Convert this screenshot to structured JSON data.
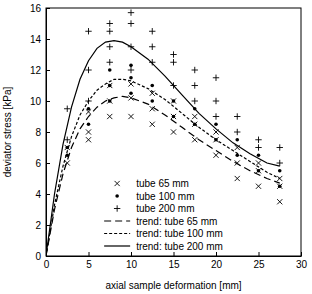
{
  "chart_data": {
    "type": "scatter",
    "x_label": "axial sample deformation [mm]",
    "y_label": "deviator stress [kPa]",
    "xlim": [
      0,
      30
    ],
    "ylim": [
      0,
      16
    ],
    "xticks": [
      0,
      5,
      10,
      15,
      20,
      25,
      30
    ],
    "yticks": [
      0,
      2,
      4,
      6,
      8,
      10,
      12,
      14,
      16
    ],
    "grid": false,
    "legend": "lower center",
    "series": [
      {
        "name": "tube 65 mm",
        "type": "scatter",
        "marker": "x",
        "color": "#000000",
        "x": [
          2.5,
          2.5,
          5,
          5,
          5,
          7.5,
          7.5,
          7.5,
          10,
          10,
          10,
          12.5,
          12.5,
          12.5,
          15,
          15,
          15,
          17.5,
          17.5,
          17.5,
          20,
          20,
          20,
          22.5,
          22.5,
          22.5,
          25,
          25,
          25,
          27.5,
          27.5,
          27.5
        ],
        "values": [
          6.0,
          7.0,
          8.0,
          9.3,
          7.5,
          9.0,
          10.0,
          11.0,
          9.0,
          10.2,
          11.1,
          8.5,
          9.5,
          10.5,
          8.0,
          9.0,
          10.0,
          7.5,
          8.5,
          9.0,
          6.5,
          7.5,
          8.0,
          5.0,
          6.0,
          7.0,
          4.5,
          5.5,
          6.0,
          3.5,
          4.5,
          5.0
        ]
      },
      {
        "name": "tube 100 mm",
        "type": "scatter",
        "marker": "dot",
        "color": "#000000",
        "x": [
          2.5,
          2.5,
          5,
          5,
          7.5,
          7.5,
          7.5,
          10,
          10,
          10,
          12.5,
          12.5,
          15,
          15,
          17.5,
          17.5,
          20,
          20,
          22.5,
          22.5,
          25,
          25,
          27.5,
          27.5
        ],
        "values": [
          6.5,
          7.0,
          8.5,
          9.5,
          10.0,
          11.0,
          12.0,
          10.5,
          11.5,
          12.3,
          10.0,
          11.0,
          9.0,
          10.0,
          8.5,
          9.5,
          7.5,
          8.5,
          6.5,
          7.5,
          5.5,
          6.5,
          4.5,
          5.5
        ]
      },
      {
        "name": "tube 200 mm",
        "type": "scatter",
        "marker": "plus",
        "color": "#000000",
        "x": [
          2.5,
          2.5,
          5,
          5,
          5,
          7.5,
          7.5,
          7.5,
          7.5,
          10,
          10,
          10,
          10,
          12.5,
          12.5,
          12.5,
          15,
          15,
          15,
          17.5,
          17.5,
          17.5,
          20,
          20,
          20,
          22.5,
          22.5,
          25,
          25,
          27.5,
          27.5
        ],
        "values": [
          7.5,
          9.5,
          10.0,
          12.0,
          14.5,
          12.5,
          13.5,
          14.5,
          15.0,
          12.0,
          13.5,
          15.0,
          15.7,
          12.5,
          13.5,
          14.5,
          11.0,
          12.5,
          13.0,
          10.0,
          11.0,
          12.0,
          9.0,
          10.0,
          11.5,
          8.0,
          9.0,
          7.0,
          7.5,
          6.0,
          7.0
        ]
      },
      {
        "name": "trend: tube 65 mm",
        "type": "line",
        "line_style": "dashed",
        "color": "#000000",
        "x": [
          0,
          1,
          2,
          3,
          4,
          5,
          6,
          7,
          8,
          9,
          10,
          12,
          14,
          16,
          18,
          20,
          22,
          24,
          26,
          27.5
        ],
        "values": [
          0,
          3.0,
          5.3,
          7.0,
          8.2,
          9.0,
          9.6,
          10.0,
          10.2,
          10.3,
          10.2,
          9.8,
          9.1,
          8.3,
          7.5,
          6.8,
          6.1,
          5.5,
          5.0,
          4.7
        ]
      },
      {
        "name": "trend: tube 100 mm",
        "type": "line",
        "line_style": "dotted",
        "color": "#000000",
        "x": [
          0,
          1,
          2,
          3,
          4,
          5,
          6,
          7,
          8,
          9,
          10,
          12,
          14,
          16,
          18,
          20,
          22,
          24,
          26,
          27.5
        ],
        "values": [
          0,
          3.3,
          5.8,
          7.7,
          9.1,
          10.0,
          10.7,
          11.1,
          11.4,
          11.4,
          11.3,
          10.8,
          10.1,
          9.2,
          8.3,
          7.5,
          6.8,
          6.1,
          5.4,
          5.0
        ]
      },
      {
        "name": "trend: tube 200 mm",
        "type": "line",
        "line_style": "solid",
        "color": "#000000",
        "x": [
          0,
          1,
          2,
          3,
          4,
          5,
          6,
          7,
          8,
          9,
          10,
          12,
          14,
          16,
          18,
          20,
          22,
          24,
          26,
          27.5
        ],
        "values": [
          0,
          4.0,
          7.2,
          9.6,
          11.4,
          12.6,
          13.4,
          13.8,
          13.9,
          13.8,
          13.5,
          12.7,
          11.6,
          10.4,
          9.2,
          8.2,
          7.3,
          6.6,
          6.0,
          5.8
        ]
      }
    ]
  }
}
